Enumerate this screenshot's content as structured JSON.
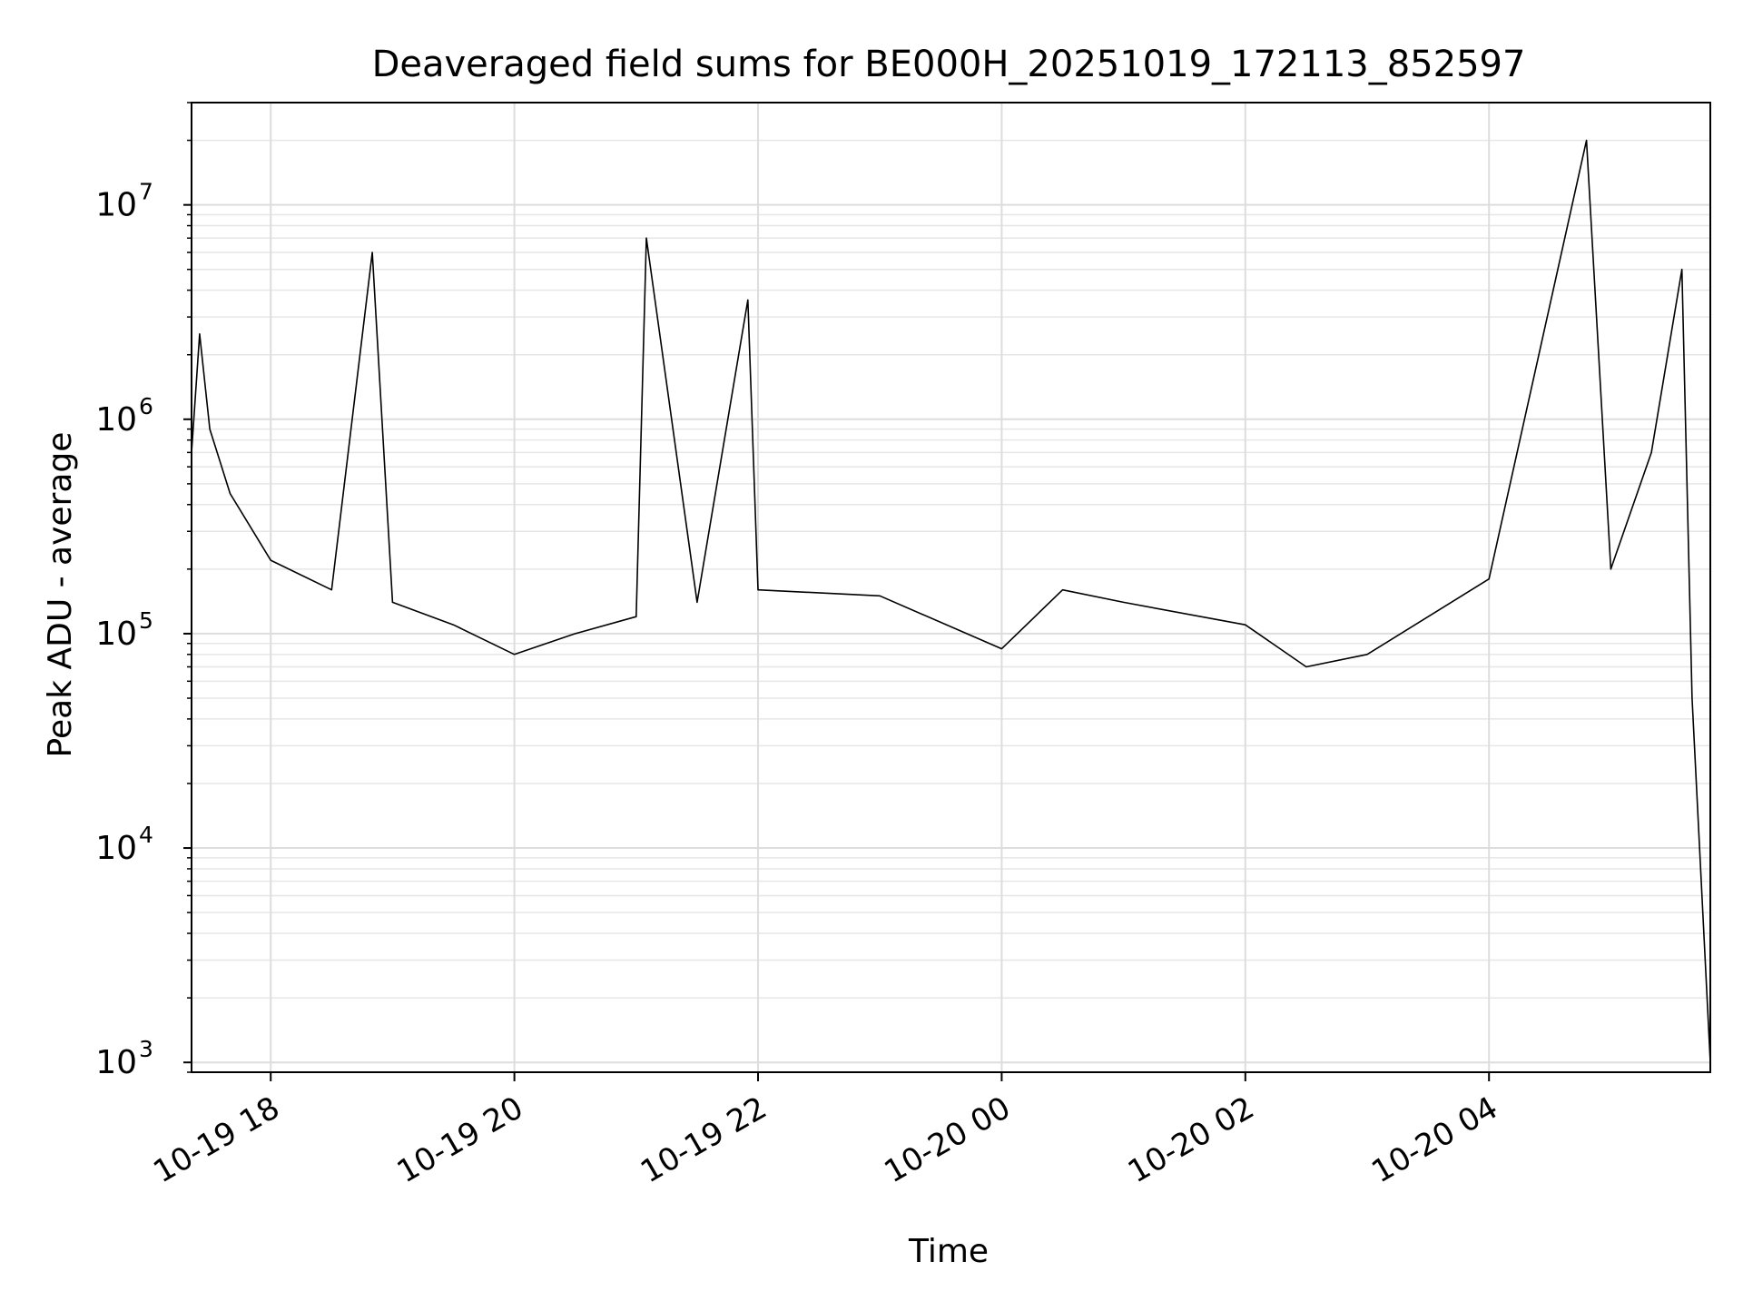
{
  "chart_data": {
    "type": "line",
    "title": "Deaveraged field sums for BE000H_20251019_172113_852597",
    "xlabel": "Time",
    "ylabel": "Peak ADU - average",
    "yscale": "log",
    "ylim": [
      900,
      30000000
    ],
    "xlim": [
      "2025-10-19 17:21",
      "2025-10-20 05:49"
    ],
    "grid": true,
    "grid_minor_y": true,
    "line_color": "#000000",
    "x_ticks": [
      {
        "value": "2025-10-19 18:00",
        "label": "10-19 18"
      },
      {
        "value": "2025-10-19 20:00",
        "label": "10-19 20"
      },
      {
        "value": "2025-10-19 22:00",
        "label": "10-19 22"
      },
      {
        "value": "2025-10-20 00:00",
        "label": "10-20 00"
      },
      {
        "value": "2025-10-20 02:00",
        "label": "10-20 02"
      },
      {
        "value": "2025-10-20 04:00",
        "label": "10-20 04"
      }
    ],
    "y_ticks": [
      {
        "value": 1000,
        "base": "10",
        "exp": "3"
      },
      {
        "value": 10000,
        "base": "10",
        "exp": "4"
      },
      {
        "value": 100000,
        "base": "10",
        "exp": "5"
      },
      {
        "value": 1000000,
        "base": "10",
        "exp": "6"
      },
      {
        "value": 10000000,
        "base": "10",
        "exp": "7"
      }
    ],
    "series": [
      {
        "name": "",
        "points": [
          {
            "t": "2025-10-19 17:21",
            "y": 700000
          },
          {
            "t": "2025-10-19 17:25",
            "y": 2500000
          },
          {
            "t": "2025-10-19 17:30",
            "y": 900000
          },
          {
            "t": "2025-10-19 17:40",
            "y": 450000
          },
          {
            "t": "2025-10-19 18:00",
            "y": 220000
          },
          {
            "t": "2025-10-19 18:30",
            "y": 160000
          },
          {
            "t": "2025-10-19 18:50",
            "y": 6000000
          },
          {
            "t": "2025-10-19 19:00",
            "y": 140000
          },
          {
            "t": "2025-10-19 19:30",
            "y": 110000
          },
          {
            "t": "2025-10-19 20:00",
            "y": 80000
          },
          {
            "t": "2025-10-19 20:30",
            "y": 100000
          },
          {
            "t": "2025-10-19 21:00",
            "y": 120000
          },
          {
            "t": "2025-10-19 21:05",
            "y": 7000000
          },
          {
            "t": "2025-10-19 21:30",
            "y": 140000
          },
          {
            "t": "2025-10-19 21:55",
            "y": 3600000
          },
          {
            "t": "2025-10-19 22:00",
            "y": 160000
          },
          {
            "t": "2025-10-19 23:00",
            "y": 150000
          },
          {
            "t": "2025-10-20 00:00",
            "y": 85000
          },
          {
            "t": "2025-10-20 00:30",
            "y": 160000
          },
          {
            "t": "2025-10-20 01:00",
            "y": 140000
          },
          {
            "t": "2025-10-20 02:00",
            "y": 110000
          },
          {
            "t": "2025-10-20 02:30",
            "y": 70000
          },
          {
            "t": "2025-10-20 03:00",
            "y": 80000
          },
          {
            "t": "2025-10-20 04:00",
            "y": 180000
          },
          {
            "t": "2025-10-20 04:48",
            "y": 20000000
          },
          {
            "t": "2025-10-20 05:00",
            "y": 200000
          },
          {
            "t": "2025-10-20 05:20",
            "y": 700000
          },
          {
            "t": "2025-10-20 05:35",
            "y": 5000000
          },
          {
            "t": "2025-10-20 05:40",
            "y": 50000
          },
          {
            "t": "2025-10-20 05:49",
            "y": 1000
          }
        ]
      }
    ]
  }
}
